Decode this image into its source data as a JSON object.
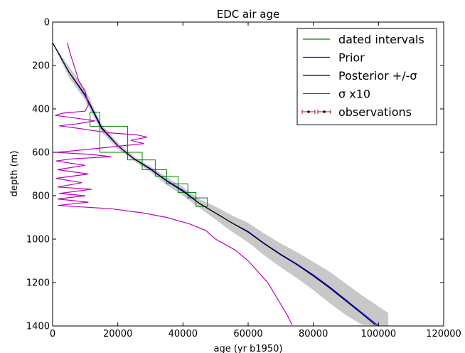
{
  "chart_data": {
    "type": "line",
    "title": "EDC air age",
    "xlabel": "age (yr b1950)",
    "ylabel": "depth (m)",
    "xlim": [
      0,
      120000
    ],
    "ylim": [
      0,
      1400
    ],
    "y_inverted": true,
    "xticks": [
      "0",
      "20000",
      "40000",
      "60000",
      "80000",
      "100000",
      "120000"
    ],
    "yticks": [
      "0",
      "200",
      "400",
      "600",
      "800",
      "1000",
      "1200",
      "1400"
    ],
    "grid": false,
    "legend_position": "top-right",
    "legend": [
      {
        "label": "dated intervals",
        "color": "#008000",
        "marker": "line"
      },
      {
        "label": "Prior",
        "color": "#0000ff",
        "marker": "line"
      },
      {
        "label": "Posterior +/-σ",
        "color": "#000000",
        "marker": "line"
      },
      {
        "label": "σ x10",
        "color": "#bf00bf",
        "marker": "line"
      },
      {
        "label": "observations",
        "color": "#cc0000",
        "marker": "errorbar"
      }
    ],
    "series": [
      {
        "name": "Prior",
        "color": "#0000ff",
        "points": [
          [
            0,
            95
          ],
          [
            5000,
            230
          ],
          [
            10000,
            340
          ],
          [
            15000,
            490
          ],
          [
            20000,
            570
          ],
          [
            25000,
            630
          ],
          [
            30000,
            675
          ],
          [
            35000,
            730
          ],
          [
            40000,
            775
          ],
          [
            45000,
            835
          ],
          [
            50000,
            880
          ],
          [
            55000,
            925
          ],
          [
            60000,
            965
          ],
          [
            65000,
            1020
          ],
          [
            70000,
            1070
          ],
          [
            75000,
            1115
          ],
          [
            80000,
            1165
          ],
          [
            85000,
            1220
          ],
          [
            90000,
            1280
          ],
          [
            95000,
            1340
          ],
          [
            100000,
            1400
          ]
        ]
      },
      {
        "name": "Posterior +/-σ",
        "color": "#000000",
        "points": [
          [
            0,
            95
          ],
          [
            5000,
            230
          ],
          [
            10000,
            335
          ],
          [
            15000,
            485
          ],
          [
            20000,
            570
          ],
          [
            25000,
            630
          ],
          [
            30000,
            678
          ],
          [
            35000,
            732
          ],
          [
            40000,
            780
          ],
          [
            45000,
            835
          ],
          [
            50000,
            880
          ],
          [
            55000,
            925
          ],
          [
            60000,
            968
          ],
          [
            65000,
            1022
          ],
          [
            70000,
            1072
          ],
          [
            75000,
            1118
          ],
          [
            80000,
            1170
          ],
          [
            85000,
            1225
          ],
          [
            90000,
            1285
          ],
          [
            95000,
            1345
          ],
          [
            99000,
            1395
          ]
        ]
      },
      {
        "name": "σ x10",
        "color": "#bf00bf",
        "points": [
          [
            4500,
            95
          ],
          [
            5500,
            150
          ],
          [
            7000,
            220
          ],
          [
            8000,
            270
          ],
          [
            10000,
            320
          ],
          [
            11000,
            380
          ],
          [
            10000,
            410
          ],
          [
            3000,
            420
          ],
          [
            800,
            430
          ],
          [
            6000,
            440
          ],
          [
            13000,
            455
          ],
          [
            7000,
            470
          ],
          [
            2000,
            478
          ],
          [
            8000,
            490
          ],
          [
            17000,
            510
          ],
          [
            26000,
            520
          ],
          [
            29000,
            530
          ],
          [
            24000,
            545
          ],
          [
            28000,
            560
          ],
          [
            15000,
            580
          ],
          [
            5000,
            595
          ],
          [
            1000,
            600
          ],
          [
            12000,
            610
          ],
          [
            18000,
            620
          ],
          [
            6000,
            630
          ],
          [
            1000,
            640
          ],
          [
            10000,
            660
          ],
          [
            1500,
            680
          ],
          [
            11000,
            700
          ],
          [
            1000,
            720
          ],
          [
            9000,
            740
          ],
          [
            1500,
            760
          ],
          [
            12000,
            770
          ],
          [
            2000,
            790
          ],
          [
            10000,
            800
          ],
          [
            1500,
            815
          ],
          [
            11000,
            830
          ],
          [
            1500,
            845
          ],
          [
            18000,
            860
          ],
          [
            28000,
            880
          ],
          [
            35000,
            900
          ],
          [
            42000,
            930
          ],
          [
            47000,
            960
          ],
          [
            50000,
            1000
          ],
          [
            56000,
            1050
          ],
          [
            60000,
            1100
          ],
          [
            63000,
            1150
          ],
          [
            66000,
            1200
          ],
          [
            68000,
            1250
          ],
          [
            70000,
            1300
          ],
          [
            72000,
            1350
          ],
          [
            73500,
            1395
          ]
        ]
      }
    ],
    "band": {
      "name": "Posterior +/-σ",
      "color": "#c8c8c8",
      "points": [
        [
          0,
          95,
          95
        ],
        [
          5000,
          205,
          255
        ],
        [
          10000,
          310,
          360
        ],
        [
          15000,
          470,
          505
        ],
        [
          20000,
          555,
          585
        ],
        [
          25000,
          620,
          640
        ],
        [
          30000,
          665,
          690
        ],
        [
          35000,
          715,
          750
        ],
        [
          40000,
          760,
          800
        ],
        [
          45000,
          815,
          855
        ],
        [
          50000,
          850,
          910
        ],
        [
          55000,
          890,
          965
        ],
        [
          60000,
          925,
          1015
        ],
        [
          65000,
          975,
          1075
        ],
        [
          70000,
          1020,
          1130
        ],
        [
          75000,
          1060,
          1180
        ],
        [
          80000,
          1105,
          1235
        ],
        [
          85000,
          1150,
          1295
        ],
        [
          90000,
          1205,
          1350
        ],
        [
          95000,
          1260,
          1395
        ],
        [
          100000,
          1310,
          1400
        ],
        [
          103000,
          1340,
          1400
        ]
      ]
    },
    "dated_intervals": [
      {
        "age": [
          11500,
          14500
        ],
        "depth": [
          415,
          480
        ]
      },
      {
        "age": [
          14500,
          23000
        ],
        "depth": [
          480,
          600
        ]
      },
      {
        "age": [
          23000,
          27500
        ],
        "depth": [
          600,
          635
        ]
      },
      {
        "age": [
          27500,
          31500
        ],
        "depth": [
          635,
          680
        ]
      },
      {
        "age": [
          31500,
          35000
        ],
        "depth": [
          680,
          710
        ]
      },
      {
        "age": [
          35000,
          38500
        ],
        "depth": [
          710,
          745
        ]
      },
      {
        "age": [
          38500,
          41500
        ],
        "depth": [
          745,
          785
        ]
      },
      {
        "age": [
          41500,
          44000
        ],
        "depth": [
          785,
          810
        ]
      },
      {
        "age": [
          44000,
          47500
        ],
        "depth": [
          810,
          850
        ]
      }
    ]
  }
}
